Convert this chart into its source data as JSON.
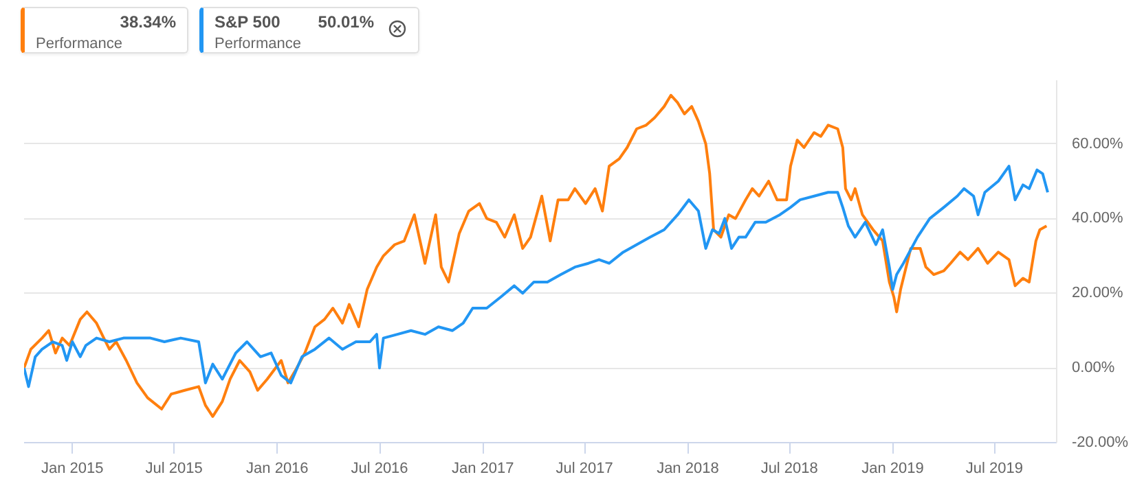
{
  "chart_data": {
    "type": "line",
    "annotations": [
      "38.34%",
      "Performance",
      "50.01%",
      "Performance"
    ],
    "legend": "top left",
    "grid": "y",
    "line_style": "solid",
    "marker": "none",
    "xlim": [
      "2014-10-07",
      "2019-10-20"
    ],
    "xticks": [
      {
        "value": "2015-01-01",
        "label": "Jan 2015"
      },
      {
        "value": "2015-07-01",
        "label": "Jul 2015"
      },
      {
        "value": "2016-01-01",
        "label": "Jan 2016"
      },
      {
        "value": "2016-07-01",
        "label": "Jul 2016"
      },
      {
        "value": "2017-01-01",
        "label": "Jan 2017"
      },
      {
        "value": "2017-07-01",
        "label": "Jul 2017"
      },
      {
        "value": "2018-01-01",
        "label": "Jan 2018"
      },
      {
        "value": "2018-07-01",
        "label": "Jul 2018"
      },
      {
        "value": "2019-01-01",
        "label": "Jan 2019"
      },
      {
        "value": "2019-07-01",
        "label": "Jul 2019"
      }
    ],
    "ylim": [
      -20,
      77
    ],
    "yticks": [
      {
        "value": -20,
        "label": "-20.00%"
      },
      {
        "value": 0,
        "label": "0.00%"
      },
      {
        "value": 20,
        "label": "20.00%"
      },
      {
        "value": 40,
        "label": "40.00%"
      },
      {
        "value": 60,
        "label": "60.00%"
      }
    ],
    "series": [
      {
        "color": "#ff7f0e",
        "x": [
          "2014-10-07",
          "2014-10-19",
          "2014-11-08",
          "2014-11-20",
          "2014-12-02",
          "2014-12-14",
          "2014-12-27",
          "2015-01-15",
          "2015-01-27",
          "2015-02-13",
          "2015-02-26",
          "2015-03-08",
          "2015-03-20",
          "2015-04-07",
          "2015-04-26",
          "2015-05-15",
          "2015-06-09",
          "2015-06-26",
          "2015-07-20",
          "2015-08-14",
          "2015-08-26",
          "2015-09-08",
          "2015-09-25",
          "2015-10-09",
          "2015-10-26",
          "2015-11-13",
          "2015-11-27",
          "2015-12-14",
          "2016-01-08",
          "2016-01-20",
          "2016-02-01",
          "2016-02-19",
          "2016-03-08",
          "2016-03-25",
          "2016-04-09",
          "2016-04-26",
          "2016-05-08",
          "2016-05-25",
          "2016-06-09",
          "2016-06-26",
          "2016-07-08",
          "2016-07-28",
          "2016-08-14",
          "2016-09-01",
          "2016-09-20",
          "2016-10-09",
          "2016-10-19",
          "2016-11-01",
          "2016-11-20",
          "2016-12-07",
          "2016-12-26",
          "2017-01-08",
          "2017-01-25",
          "2017-02-09",
          "2017-02-26",
          "2017-03-13",
          "2017-03-27",
          "2017-04-16",
          "2017-05-01",
          "2017-05-15",
          "2017-06-02",
          "2017-06-14",
          "2017-07-03",
          "2017-07-20",
          "2017-08-02",
          "2017-08-14",
          "2017-09-01",
          "2017-09-15",
          "2017-10-02",
          "2017-10-19",
          "2017-11-03",
          "2017-11-20",
          "2017-12-02",
          "2017-12-14",
          "2017-12-26",
          "2018-01-08",
          "2018-01-20",
          "2018-02-02",
          "2018-02-09",
          "2018-02-16",
          "2018-03-01",
          "2018-03-15",
          "2018-03-27",
          "2018-04-14",
          "2018-04-26",
          "2018-05-08",
          "2018-05-25",
          "2018-06-09",
          "2018-06-26",
          "2018-07-03",
          "2018-07-15",
          "2018-07-27",
          "2018-08-14",
          "2018-08-26",
          "2018-09-08",
          "2018-09-25",
          "2018-10-04",
          "2018-10-09",
          "2018-10-19",
          "2018-10-26",
          "2018-11-08",
          "2018-11-27",
          "2018-12-14",
          "2018-12-26",
          "2019-01-03",
          "2019-01-08",
          "2019-01-15",
          "2019-02-02",
          "2019-02-19",
          "2019-03-01",
          "2019-03-15",
          "2019-04-02",
          "2019-04-14",
          "2019-05-01",
          "2019-05-15",
          "2019-06-02",
          "2019-06-19",
          "2019-07-08",
          "2019-07-27",
          "2019-08-07",
          "2019-08-21",
          "2019-09-01",
          "2019-09-13",
          "2019-09-20",
          "2019-10-02"
        ],
        "values": [
          0,
          5,
          8,
          10,
          4,
          8,
          6,
          13,
          15,
          12,
          8,
          5,
          7,
          2,
          -4,
          -8,
          -11,
          -7,
          -6,
          -5,
          -10,
          -13,
          -9,
          -3,
          2,
          -1,
          -6,
          -3,
          2,
          -4,
          -1,
          4,
          11,
          13,
          16,
          12,
          17,
          11,
          21,
          27,
          30,
          33,
          34,
          41,
          28,
          41,
          27,
          23,
          36,
          42,
          44,
          40,
          39,
          35,
          41,
          32,
          35,
          46,
          34,
          45,
          45,
          48,
          44,
          48,
          42,
          54,
          56,
          59,
          64,
          65,
          67,
          70,
          73,
          71,
          68,
          70,
          66,
          60,
          52,
          37,
          35,
          41,
          40,
          45,
          48,
          46,
          50,
          45,
          45,
          54,
          61,
          59,
          63,
          62,
          65,
          64,
          59,
          48,
          45,
          48,
          41,
          37,
          34,
          23,
          19,
          15,
          21,
          32,
          32,
          27,
          25,
          26,
          28,
          31,
          29,
          32,
          28,
          31,
          29,
          22,
          24,
          23,
          34,
          37,
          38
        ]
      },
      {
        "name": "S&P 500",
        "color": "#2196f3",
        "x": [
          "2014-10-07",
          "2014-10-15",
          "2014-10-27",
          "2014-11-08",
          "2014-11-27",
          "2014-12-14",
          "2014-12-22",
          "2015-01-01",
          "2015-01-15",
          "2015-01-25",
          "2015-02-13",
          "2015-03-08",
          "2015-04-02",
          "2015-04-26",
          "2015-05-20",
          "2015-06-14",
          "2015-07-13",
          "2015-08-14",
          "2015-08-26",
          "2015-09-08",
          "2015-09-25",
          "2015-10-19",
          "2015-11-08",
          "2015-12-02",
          "2015-12-21",
          "2016-01-08",
          "2016-01-25",
          "2016-02-14",
          "2016-03-08",
          "2016-04-02",
          "2016-04-26",
          "2016-05-20",
          "2016-06-14",
          "2016-06-26",
          "2016-07-01",
          "2016-07-08",
          "2016-08-02",
          "2016-08-26",
          "2016-09-20",
          "2016-10-14",
          "2016-11-08",
          "2016-11-27",
          "2016-12-14",
          "2017-01-08",
          "2017-02-02",
          "2017-02-26",
          "2017-03-13",
          "2017-04-02",
          "2017-04-26",
          "2017-05-20",
          "2017-06-14",
          "2017-07-08",
          "2017-07-27",
          "2017-08-14",
          "2017-09-08",
          "2017-10-02",
          "2017-10-26",
          "2017-11-20",
          "2017-12-14",
          "2018-01-03",
          "2018-01-20",
          "2018-02-02",
          "2018-02-14",
          "2018-02-26",
          "2018-03-08",
          "2018-03-20",
          "2018-04-02",
          "2018-04-14",
          "2018-05-01",
          "2018-05-20",
          "2018-06-14",
          "2018-07-03",
          "2018-07-20",
          "2018-08-14",
          "2018-09-08",
          "2018-09-25",
          "2018-10-04",
          "2018-10-14",
          "2018-10-26",
          "2018-11-13",
          "2018-12-02",
          "2018-12-14",
          "2018-12-26",
          "2019-01-01",
          "2019-01-08",
          "2019-01-20",
          "2019-02-14",
          "2019-03-08",
          "2019-04-02",
          "2019-04-26",
          "2019-05-08",
          "2019-05-25",
          "2019-06-02",
          "2019-06-14",
          "2019-07-08",
          "2019-07-27",
          "2019-08-07",
          "2019-08-21",
          "2019-09-01",
          "2019-09-15",
          "2019-09-25",
          "2019-10-04"
        ],
        "values": [
          0,
          -5,
          3,
          5,
          7,
          6,
          2,
          7,
          3,
          6,
          8,
          7,
          8,
          8,
          8,
          7,
          8,
          7,
          -4,
          1,
          -3,
          4,
          7,
          3,
          4,
          -2,
          -4,
          3,
          5,
          8,
          5,
          7,
          7,
          9,
          0,
          8,
          9,
          10,
          9,
          11,
          10,
          12,
          16,
          16,
          19,
          22,
          20,
          23,
          23,
          25,
          27,
          28,
          29,
          28,
          31,
          33,
          35,
          37,
          41,
          45,
          42,
          32,
          37,
          36,
          40,
          32,
          35,
          35,
          39,
          39,
          41,
          43,
          45,
          46,
          47,
          47,
          43,
          38,
          35,
          39,
          33,
          37,
          27,
          21,
          25,
          28,
          35,
          40,
          43,
          46,
          48,
          46,
          41,
          47,
          50,
          54,
          45,
          49,
          48,
          53,
          52,
          47
        ]
      }
    ]
  }
}
